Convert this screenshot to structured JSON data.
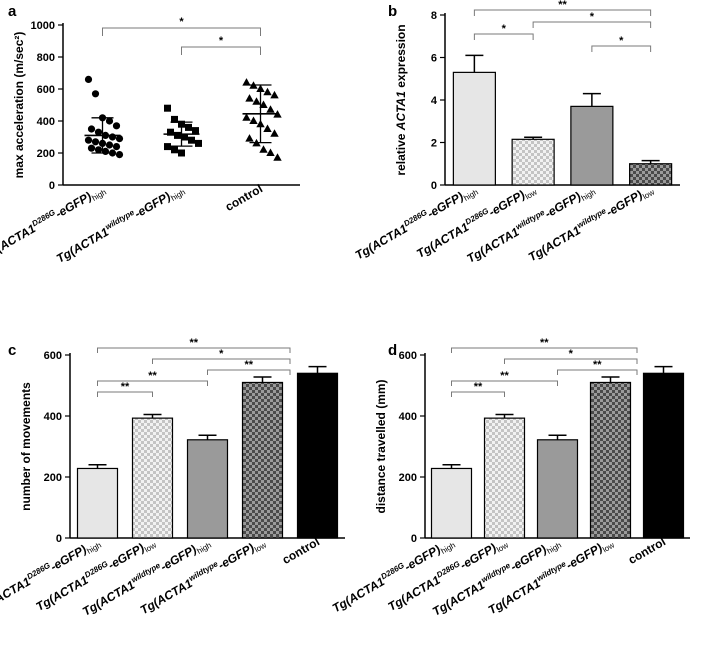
{
  "chart_data": [
    {
      "panel_letter": "a",
      "type": "scatter",
      "ylabel": "max acceleration (m/sec²)",
      "ylim": [
        0,
        1000
      ],
      "yticks": [
        0,
        200,
        400,
        600,
        800,
        1000
      ],
      "categories": [
        {
          "base": "Tg(ACTA1",
          "sup": "D286G",
          "rest": "-eGFP)",
          "sub": "high"
        },
        {
          "base": "Tg(ACTA1",
          "sup": "wildtype",
          "rest": "-eGFP)",
          "sub": "high"
        },
        {
          "plain": "control"
        }
      ],
      "series": [
        {
          "marker": "circle",
          "mean": 310,
          "sd": 110,
          "points": [
            660,
            570,
            420,
            400,
            370,
            350,
            330,
            310,
            300,
            290,
            280,
            270,
            260,
            250,
            240,
            230,
            220,
            210,
            200,
            190
          ]
        },
        {
          "marker": "square",
          "mean": 318,
          "sd": 75,
          "points": [
            480,
            410,
            380,
            360,
            340,
            330,
            310,
            300,
            280,
            260,
            240,
            220,
            200
          ]
        },
        {
          "marker": "triangle",
          "mean": 445,
          "sd": 180,
          "points": [
            640,
            620,
            600,
            580,
            560,
            540,
            520,
            500,
            470,
            440,
            420,
            400,
            380,
            350,
            320,
            290,
            260,
            220,
            200,
            170
          ]
        }
      ],
      "significance": [
        {
          "from": 0,
          "to": 2,
          "label": "*"
        },
        {
          "from": 1,
          "to": 2,
          "label": "*"
        }
      ]
    },
    {
      "panel_letter": "b",
      "type": "bar",
      "ylabel_parts": [
        "relative ",
        "ACTA1",
        " expression"
      ],
      "ylim": [
        0,
        8
      ],
      "yticks": [
        0,
        2,
        4,
        6,
        8
      ],
      "categories": [
        {
          "base": "Tg(ACTA1",
          "sup": "D286G",
          "rest": "-eGFP)",
          "sub": "high"
        },
        {
          "base": "Tg(ACTA1",
          "sup": "D286G",
          "rest": "-eGFP)",
          "sub": "low"
        },
        {
          "base": "Tg(ACTA1",
          "sup": "wildtype",
          "rest": "-eGFP)",
          "sub": "high"
        },
        {
          "base": "Tg(ACTA1",
          "sup": "wildtype",
          "rest": "-eGFP)",
          "sub": "low"
        }
      ],
      "values": [
        5.3,
        2.15,
        3.7,
        1.0
      ],
      "errors": [
        0.8,
        0.1,
        0.6,
        0.15
      ],
      "fills": [
        "light",
        "checker-light",
        "medium",
        "checker-dark"
      ],
      "significance": [
        {
          "from": 0,
          "to": 3,
          "label": "**"
        },
        {
          "from": 1,
          "to": 3,
          "label": "*"
        },
        {
          "from": 0,
          "to": 1,
          "label": "*"
        },
        {
          "from": 2,
          "to": 3,
          "label": "*"
        }
      ]
    },
    {
      "panel_letter": "c",
      "type": "bar",
      "ylabel": "number of movements",
      "ylim": [
        0,
        600
      ],
      "yticks": [
        0,
        200,
        400,
        600
      ],
      "categories": [
        {
          "base": "Tg(ACTA1",
          "sup": "D286G",
          "rest": "-eGFP)",
          "sub": "high"
        },
        {
          "base": "Tg(ACTA1",
          "sup": "D286G",
          "rest": "-eGFP)",
          "sub": "low"
        },
        {
          "base": "Tg(ACTA1",
          "sup": "wildtype",
          "rest": "-eGFP)",
          "sub": "high"
        },
        {
          "base": "Tg(ACTA1",
          "sup": "wildtype",
          "rest": "-eGFP)",
          "sub": "low"
        },
        {
          "plain": "control"
        }
      ],
      "values": [
        228,
        393,
        322,
        510,
        540
      ],
      "errors": [
        12,
        12,
        15,
        18,
        22
      ],
      "fills": [
        "light",
        "checker-light",
        "medium",
        "checker-dark",
        "black"
      ],
      "significance": [
        {
          "from": 0,
          "to": 3.5,
          "label": "**"
        },
        {
          "from": 1,
          "to": 3.5,
          "label": "*"
        },
        {
          "from": 2,
          "to": 3.5,
          "label": "**"
        },
        {
          "from": 0,
          "to": 2,
          "label": "**"
        },
        {
          "from": 0,
          "to": 1,
          "label": "**"
        }
      ]
    },
    {
      "panel_letter": "d",
      "type": "bar",
      "ylabel": "distance travelled (mm)",
      "ylim": [
        0,
        600
      ],
      "yticks": [
        0,
        200,
        400,
        600
      ],
      "categories": [
        {
          "base": "Tg(ACTA1",
          "sup": "D286G",
          "rest": "-eGFP)",
          "sub": "high"
        },
        {
          "base": "Tg(ACTA1",
          "sup": "D286G",
          "rest": "-eGFP)",
          "sub": "low"
        },
        {
          "base": "Tg(ACTA1",
          "sup": "wildtype",
          "rest": "-eGFP)",
          "sub": "high"
        },
        {
          "base": "Tg(ACTA1",
          "sup": "wildtype",
          "rest": "-eGFP)",
          "sub": "low"
        },
        {
          "plain": "control"
        }
      ],
      "values": [
        228,
        393,
        322,
        510,
        540
      ],
      "errors": [
        12,
        12,
        15,
        18,
        22
      ],
      "fills": [
        "light",
        "checker-light",
        "medium",
        "checker-dark",
        "black"
      ],
      "significance": [
        {
          "from": 0,
          "to": 3.5,
          "label": "**"
        },
        {
          "from": 1,
          "to": 3.5,
          "label": "*"
        },
        {
          "from": 2,
          "to": 3.5,
          "label": "**"
        },
        {
          "from": 0,
          "to": 2,
          "label": "**"
        },
        {
          "from": 0,
          "to": 1,
          "label": "**"
        }
      ]
    }
  ],
  "colors": {
    "light": "#e6e6e6",
    "medium": "#9a9a9a",
    "dark": "#4a4a4a",
    "black": "#000000",
    "bracket": "#7a7a7a",
    "axis": "#000000"
  }
}
